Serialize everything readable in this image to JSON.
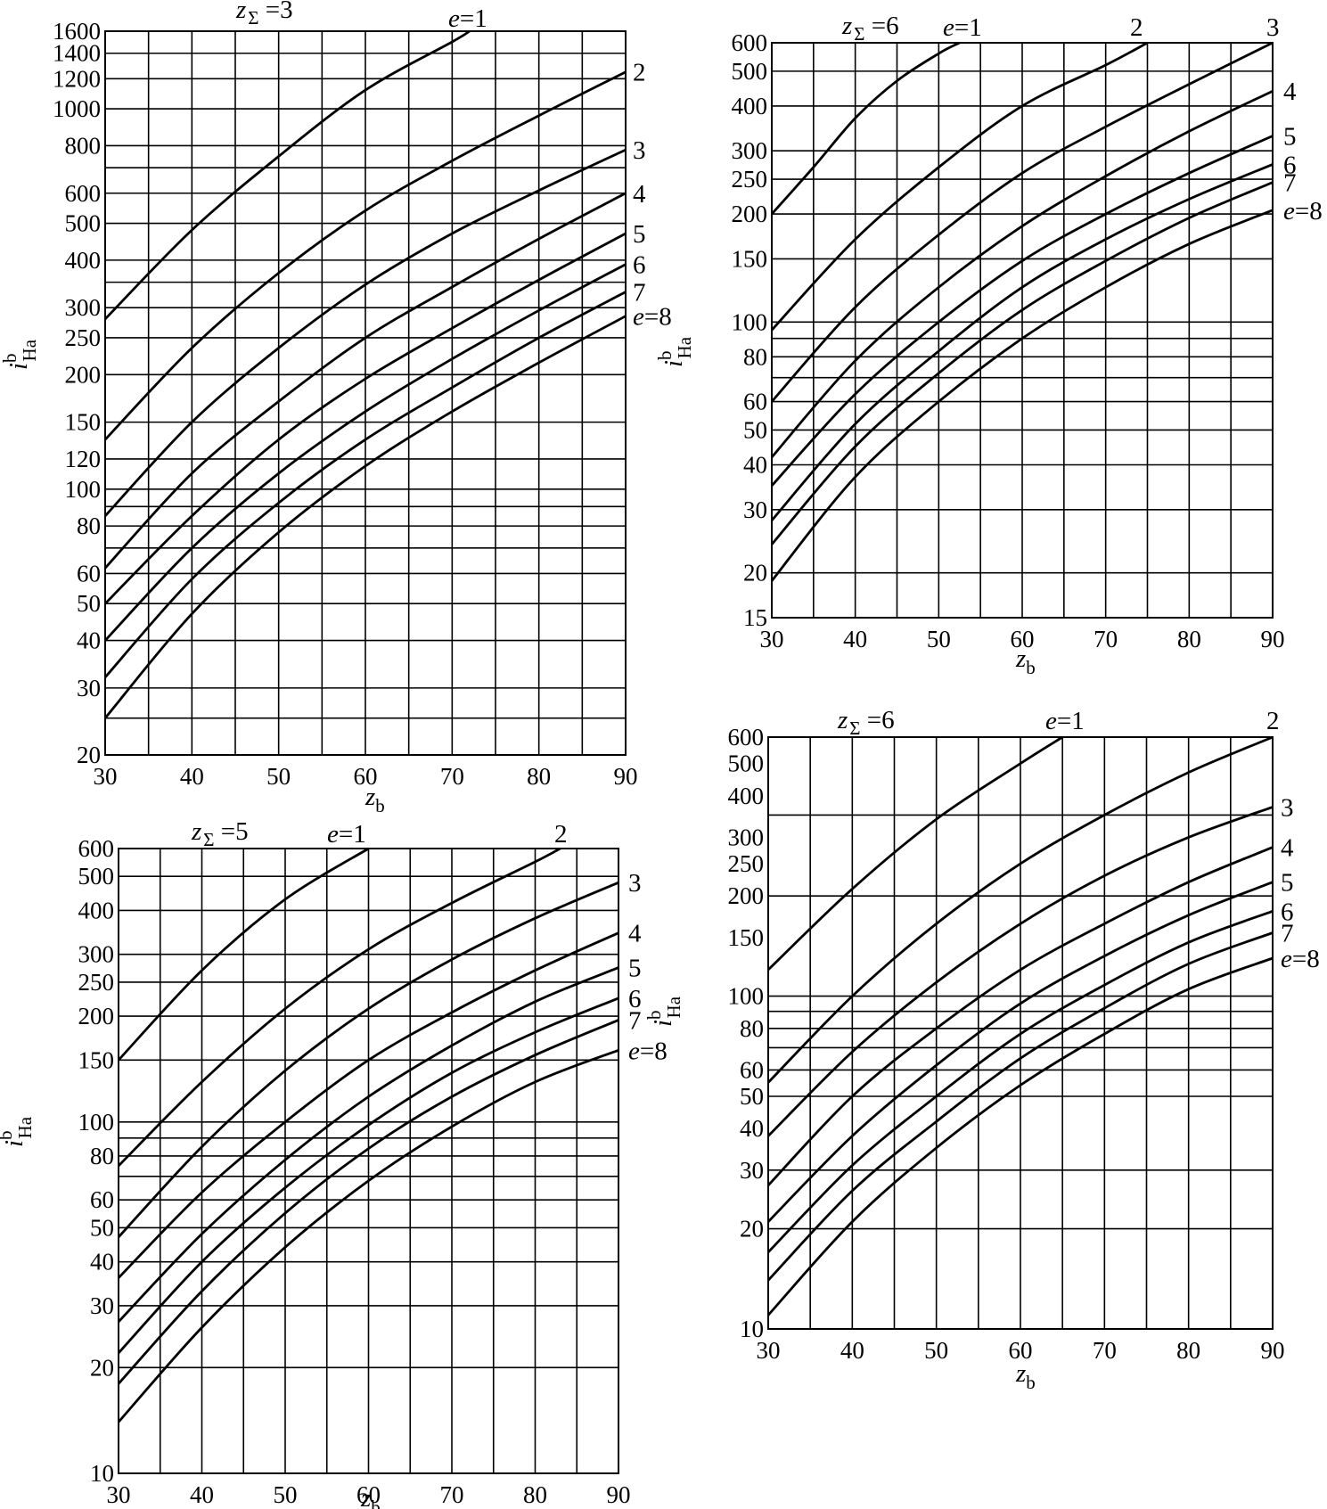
{
  "chart_data": [
    {
      "type": "line",
      "title": "zΣ =3",
      "title_var": "z",
      "title_sub": "Σ",
      "title_val": " =3",
      "xlabel_var": "z",
      "xlabel_sub": "b",
      "ylabel_var": "i",
      "ylabel_sup": "b",
      "ylabel_sub": "Ha",
      "xlim": [
        30,
        90
      ],
      "ylim": [
        20,
        1600
      ],
      "y_scale": "log",
      "x_ticks": [
        30,
        40,
        50,
        60,
        70,
        80,
        90
      ],
      "x_grid": [
        30,
        35,
        40,
        45,
        50,
        55,
        60,
        65,
        70,
        75,
        80,
        85,
        90
      ],
      "y_ticks": [
        20,
        30,
        40,
        50,
        60,
        80,
        100,
        120,
        150,
        200,
        250,
        300,
        400,
        500,
        600,
        800,
        1000,
        1200,
        1400,
        1600
      ],
      "y_grid": [
        20,
        25,
        30,
        40,
        50,
        60,
        70,
        80,
        90,
        100,
        120,
        150,
        200,
        250,
        300,
        350,
        400,
        500,
        600,
        700,
        800,
        1000,
        1200,
        1400,
        1600
      ],
      "grid": true,
      "series": [
        {
          "name": "e=1",
          "x": [
            30,
            40,
            50,
            60,
            70,
            72
          ],
          "y": [
            280,
            480,
            750,
            1120,
            1500,
            1600
          ]
        },
        {
          "name": "2",
          "x": [
            30,
            40,
            50,
            60,
            70,
            80,
            90
          ],
          "y": [
            135,
            235,
            370,
            540,
            730,
            960,
            1250
          ]
        },
        {
          "name": "3",
          "x": [
            30,
            40,
            50,
            60,
            70,
            80,
            90
          ],
          "y": [
            85,
            150,
            235,
            345,
            470,
            610,
            780
          ]
        },
        {
          "name": "4",
          "x": [
            30,
            40,
            50,
            60,
            70,
            80,
            90
          ],
          "y": [
            62,
            110,
            170,
            250,
            340,
            455,
            600
          ]
        },
        {
          "name": "5",
          "x": [
            30,
            40,
            50,
            60,
            70,
            80,
            90
          ],
          "y": [
            50,
            85,
            135,
            195,
            265,
            355,
            470
          ]
        },
        {
          "name": "6",
          "x": [
            30,
            40,
            50,
            60,
            70,
            80,
            90
          ],
          "y": [
            40,
            70,
            110,
            160,
            220,
            295,
            390
          ]
        },
        {
          "name": "7",
          "x": [
            30,
            40,
            50,
            60,
            70,
            80,
            90
          ],
          "y": [
            32,
            58,
            92,
            135,
            185,
            250,
            330
          ]
        },
        {
          "name": "e=8",
          "x": [
            30,
            40,
            50,
            60,
            70,
            80,
            90
          ],
          "y": [
            25,
            47,
            77,
            115,
            160,
            215,
            285
          ]
        }
      ]
    },
    {
      "type": "line",
      "title": "zΣ =6",
      "title_var": "z",
      "title_sub": "Σ",
      "title_val": " =6",
      "xlabel_var": "z",
      "xlabel_sub": "b",
      "ylabel_var": "i",
      "ylabel_sup": "b",
      "ylabel_sub": "Ha",
      "xlim": [
        30,
        90
      ],
      "ylim": [
        15,
        600
      ],
      "y_scale": "log",
      "x_ticks": [
        30,
        40,
        50,
        60,
        70,
        80,
        90
      ],
      "x_grid": [
        30,
        35,
        40,
        45,
        50,
        55,
        60,
        65,
        70,
        75,
        80,
        85,
        90
      ],
      "y_ticks": [
        15,
        20,
        30,
        40,
        50,
        60,
        80,
        100,
        150,
        200,
        250,
        300,
        400,
        500,
        600
      ],
      "y_grid": [
        15,
        20,
        30,
        40,
        50,
        60,
        70,
        80,
        90,
        100,
        150,
        200,
        250,
        300,
        400,
        500,
        600
      ],
      "grid": true,
      "series": [
        {
          "name": "e=1",
          "x": [
            30,
            35,
            40,
            45,
            50,
            52.5
          ],
          "y": [
            200,
            270,
            370,
            470,
            560,
            600
          ]
        },
        {
          "name": "2",
          "x": [
            30,
            40,
            50,
            60,
            70,
            75
          ],
          "y": [
            95,
            170,
            270,
            400,
            520,
            600
          ]
        },
        {
          "name": "3",
          "x": [
            30,
            40,
            50,
            60,
            70,
            80,
            90
          ],
          "y": [
            60,
            110,
            175,
            260,
            350,
            460,
            600
          ]
        },
        {
          "name": "4",
          "x": [
            30,
            40,
            50,
            60,
            70,
            80,
            90
          ],
          "y": [
            42,
            78,
            125,
            185,
            255,
            340,
            440
          ]
        },
        {
          "name": "5",
          "x": [
            30,
            40,
            50,
            60,
            70,
            80,
            90
          ],
          "y": [
            35,
            63,
            100,
            148,
            200,
            260,
            330
          ]
        },
        {
          "name": "6",
          "x": [
            30,
            40,
            50,
            60,
            70,
            80,
            90
          ],
          "y": [
            28,
            52,
            83,
            125,
            170,
            220,
            275
          ]
        },
        {
          "name": "7",
          "x": [
            30,
            40,
            50,
            60,
            70,
            80,
            90
          ],
          "y": [
            24,
            45,
            72,
            108,
            148,
            195,
            245
          ]
        },
        {
          "name": "e=8",
          "x": [
            30,
            40,
            50,
            60,
            70,
            80,
            90
          ],
          "y": [
            19,
            37,
            60,
            90,
            125,
            165,
            205
          ]
        }
      ]
    },
    {
      "type": "line",
      "title": "zΣ =5",
      "title_var": "z",
      "title_sub": "Σ",
      "title_val": " =5",
      "xlabel_var": "z",
      "xlabel_sub": "b",
      "ylabel_var": "i",
      "ylabel_sup": "b",
      "ylabel_sub": "Ha",
      "xlim": [
        30,
        90
      ],
      "ylim": [
        10,
        600
      ],
      "y_scale": "log",
      "x_ticks": [
        30,
        40,
        50,
        60,
        70,
        80,
        90
      ],
      "x_grid": [
        30,
        35,
        40,
        45,
        50,
        55,
        60,
        65,
        70,
        75,
        80,
        85,
        90
      ],
      "y_ticks": [
        10,
        20,
        30,
        40,
        50,
        60,
        80,
        100,
        150,
        200,
        250,
        300,
        400,
        500,
        600
      ],
      "y_grid": [
        10,
        20,
        30,
        40,
        50,
        60,
        70,
        80,
        90,
        100,
        150,
        200,
        250,
        300,
        400,
        500,
        600
      ],
      "grid": true,
      "series": [
        {
          "name": "e=1",
          "x": [
            30,
            40,
            50,
            60
          ],
          "y": [
            150,
            270,
            430,
            600
          ]
        },
        {
          "name": "2",
          "x": [
            30,
            40,
            50,
            60,
            70,
            80,
            83
          ],
          "y": [
            75,
            130,
            210,
            310,
            420,
            550,
            600
          ]
        },
        {
          "name": "3",
          "x": [
            30,
            40,
            50,
            60,
            70,
            80,
            90
          ],
          "y": [
            47,
            85,
            140,
            210,
            290,
            380,
            480
          ]
        },
        {
          "name": "4",
          "x": [
            30,
            40,
            50,
            60,
            70,
            80,
            90
          ],
          "y": [
            36,
            63,
            100,
            150,
            205,
            270,
            345
          ]
        },
        {
          "name": "5",
          "x": [
            30,
            40,
            50,
            60,
            70,
            80,
            90
          ],
          "y": [
            27,
            48,
            78,
            118,
            165,
            220,
            275
          ]
        },
        {
          "name": "6",
          "x": [
            30,
            40,
            50,
            60,
            70,
            80,
            90
          ],
          "y": [
            22,
            40,
            65,
            98,
            138,
            180,
            225
          ]
        },
        {
          "name": "7",
          "x": [
            30,
            40,
            50,
            60,
            70,
            80,
            90
          ],
          "y": [
            18,
            33,
            55,
            84,
            118,
            155,
            195
          ]
        },
        {
          "name": "e=8",
          "x": [
            30,
            40,
            50,
            60,
            70,
            80,
            90
          ],
          "y": [
            14,
            26,
            44,
            68,
            97,
            130,
            160
          ]
        }
      ]
    },
    {
      "type": "line",
      "title": "zΣ =6",
      "title_var": "z",
      "title_sub": "Σ",
      "title_val": " =6",
      "xlabel_var": "z",
      "xlabel_sub": "b",
      "ylabel_var": "i",
      "ylabel_sup": "b",
      "ylabel_sub": "Ha",
      "xlim": [
        30,
        90
      ],
      "ylim": [
        10,
        600
      ],
      "y_scale": "log",
      "x_ticks": [
        30,
        40,
        50,
        60,
        70,
        80,
        90
      ],
      "x_grid": [
        30,
        35,
        40,
        45,
        50,
        55,
        60,
        65,
        70,
        75,
        80,
        85,
        90
      ],
      "y_ticks": [
        10,
        20,
        30,
        40,
        50,
        60,
        80,
        100,
        150,
        200,
        250,
        300,
        400,
        500,
        600
      ],
      "y_grid": [
        10,
        20,
        30,
        50,
        60,
        70,
        80,
        90,
        100,
        200,
        350,
        600
      ],
      "grid": true,
      "series": [
        {
          "name": "e=1",
          "x": [
            30,
            40,
            50,
            60,
            65
          ],
          "y": [
            120,
            210,
            340,
            500,
            600
          ]
        },
        {
          "name": "2",
          "x": [
            30,
            40,
            50,
            60,
            70,
            80,
            90
          ],
          "y": [
            55,
            100,
            165,
            250,
            350,
            470,
            600
          ]
        },
        {
          "name": "3",
          "x": [
            30,
            40,
            50,
            60,
            70,
            80,
            90
          ],
          "y": [
            38,
            68,
            110,
            165,
            230,
            300,
            370
          ]
        },
        {
          "name": "4",
          "x": [
            30,
            40,
            50,
            60,
            70,
            80,
            90
          ],
          "y": [
            27,
            50,
            80,
            120,
            165,
            220,
            280
          ]
        },
        {
          "name": "5",
          "x": [
            30,
            40,
            50,
            60,
            70,
            80,
            90
          ],
          "y": [
            21,
            38,
            62,
            95,
            132,
            175,
            220
          ]
        },
        {
          "name": "6",
          "x": [
            30,
            40,
            50,
            60,
            70,
            80,
            90
          ],
          "y": [
            17,
            31,
            50,
            77,
            108,
            145,
            180
          ]
        },
        {
          "name": "7",
          "x": [
            30,
            40,
            50,
            60,
            70,
            80,
            90
          ],
          "y": [
            14,
            26,
            42,
            65,
            92,
            125,
            155
          ]
        },
        {
          "name": "e=8",
          "x": [
            30,
            40,
            50,
            60,
            70,
            80,
            90
          ],
          "y": [
            11,
            21,
            35,
            54,
            77,
            105,
            130
          ]
        }
      ]
    }
  ]
}
